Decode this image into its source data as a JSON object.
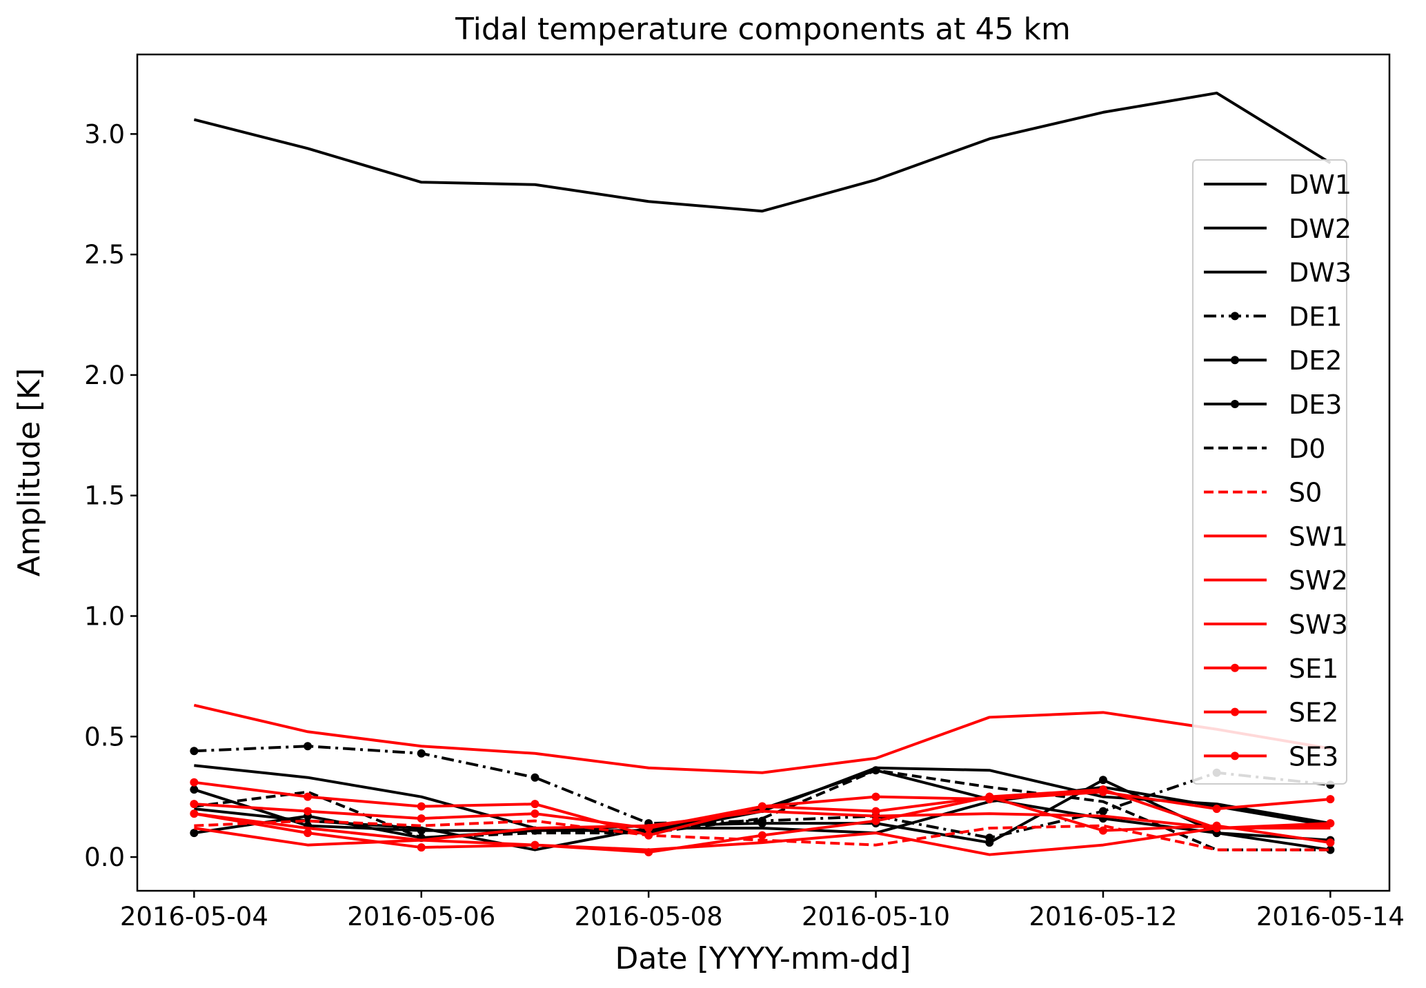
{
  "chart_data": {
    "type": "line",
    "title": "Tidal temperature components at 45 km",
    "xlabel": "Date [YYYY-mm-dd]",
    "ylabel": "Amplitude [K]",
    "x": [
      "2016-05-04",
      "2016-05-05",
      "2016-05-06",
      "2016-05-07",
      "2016-05-08",
      "2016-05-09",
      "2016-05-10",
      "2016-05-11",
      "2016-05-12",
      "2016-05-13",
      "2016-05-14"
    ],
    "xticks": [
      "2016-05-04",
      "2016-05-06",
      "2016-05-08",
      "2016-05-10",
      "2016-05-12",
      "2016-05-14"
    ],
    "yticks": [
      "0.0",
      "0.5",
      "1.0",
      "1.5",
      "2.0",
      "2.5",
      "3.0"
    ],
    "ylim": [
      -0.14,
      3.33
    ],
    "xlim_days": [
      -0.5,
      10.52
    ],
    "grid": false,
    "legend_position": "right",
    "series": [
      {
        "name": "DW1",
        "color": "#000000",
        "style": "solid",
        "marker": false,
        "values": [
          3.06,
          2.94,
          2.8,
          2.79,
          2.72,
          2.68,
          2.81,
          2.98,
          3.09,
          3.17,
          2.88
        ]
      },
      {
        "name": "DW2",
        "color": "#000000",
        "style": "solid",
        "marker": false,
        "values": [
          0.38,
          0.33,
          0.25,
          0.12,
          0.1,
          0.19,
          0.37,
          0.36,
          0.25,
          0.22,
          0.14
        ]
      },
      {
        "name": "DW3",
        "color": "#000000",
        "style": "solid",
        "marker": false,
        "values": [
          0.2,
          0.15,
          0.12,
          0.03,
          0.12,
          0.12,
          0.1,
          0.23,
          0.29,
          0.21,
          0.13
        ]
      },
      {
        "name": "DE1",
        "color": "#000000",
        "style": "dashdot",
        "marker": true,
        "values": [
          0.44,
          0.46,
          0.43,
          0.33,
          0.14,
          0.15,
          0.17,
          0.08,
          0.19,
          0.35,
          0.3
        ]
      },
      {
        "name": "DE2",
        "color": "#000000",
        "style": "solid",
        "marker": true,
        "values": [
          0.28,
          0.13,
          0.11,
          0.11,
          0.13,
          0.14,
          0.14,
          0.06,
          0.32,
          0.1,
          0.07
        ]
      },
      {
        "name": "DE3",
        "color": "#000000",
        "style": "solid",
        "marker": true,
        "values": [
          0.1,
          0.17,
          0.08,
          0.11,
          0.11,
          0.2,
          0.36,
          0.24,
          0.16,
          0.1,
          0.03
        ]
      },
      {
        "name": "D0",
        "color": "#000000",
        "style": "dashed",
        "marker": false,
        "values": [
          0.21,
          0.27,
          0.08,
          0.1,
          0.1,
          0.16,
          0.36,
          0.29,
          0.23,
          0.03,
          0.03
        ]
      },
      {
        "name": "S0",
        "color": "#ff0000",
        "style": "dashed",
        "marker": false,
        "values": [
          0.13,
          0.15,
          0.13,
          0.15,
          0.09,
          0.07,
          0.05,
          0.12,
          0.13,
          0.03,
          0.03
        ]
      },
      {
        "name": "SW1",
        "color": "#ff0000",
        "style": "solid",
        "marker": false,
        "values": [
          0.63,
          0.52,
          0.46,
          0.43,
          0.37,
          0.35,
          0.41,
          0.58,
          0.6,
          0.53,
          0.45
        ]
      },
      {
        "name": "SW2",
        "color": "#ff0000",
        "style": "solid",
        "marker": false,
        "values": [
          0.12,
          0.05,
          0.07,
          0.05,
          0.03,
          0.06,
          0.1,
          0.01,
          0.05,
          0.12,
          0.12
        ]
      },
      {
        "name": "SW3",
        "color": "#ff0000",
        "style": "solid",
        "marker": false,
        "values": [
          0.18,
          0.12,
          0.07,
          0.12,
          0.13,
          0.19,
          0.17,
          0.18,
          0.17,
          0.12,
          0.13
        ]
      },
      {
        "name": "SE1",
        "color": "#ff0000",
        "style": "solid",
        "marker": true,
        "values": [
          0.31,
          0.25,
          0.21,
          0.22,
          0.09,
          0.21,
          0.25,
          0.24,
          0.27,
          0.2,
          0.24
        ]
      },
      {
        "name": "SE2",
        "color": "#ff0000",
        "style": "solid",
        "marker": true,
        "values": [
          0.22,
          0.19,
          0.16,
          0.18,
          0.12,
          0.21,
          0.19,
          0.25,
          0.28,
          0.12,
          0.14
        ]
      },
      {
        "name": "SE3",
        "color": "#ff0000",
        "style": "solid",
        "marker": true,
        "values": [
          0.18,
          0.1,
          0.04,
          0.05,
          0.02,
          0.09,
          0.15,
          0.25,
          0.11,
          0.13,
          0.06
        ]
      }
    ]
  }
}
